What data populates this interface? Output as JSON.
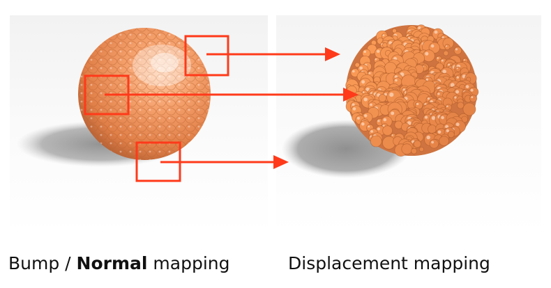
{
  "captions": {
    "left": {
      "prefix": "Bump / ",
      "emphasis": "Normal",
      "suffix": " mapping"
    },
    "right": "Displacement mapping"
  },
  "colors": {
    "sphere_base": "#f0905a",
    "sphere_dark": "#a8532c",
    "highlight": "#ffe6d2",
    "annotation": "#ff3a1a",
    "shadow": "#9a9a9a",
    "floor_light": "#f7f7f7",
    "floor_dark": "#d9d9d9"
  },
  "icons": {
    "annotation_box": "red-square-outline",
    "annotation_arrow": "red-arrow-right"
  }
}
